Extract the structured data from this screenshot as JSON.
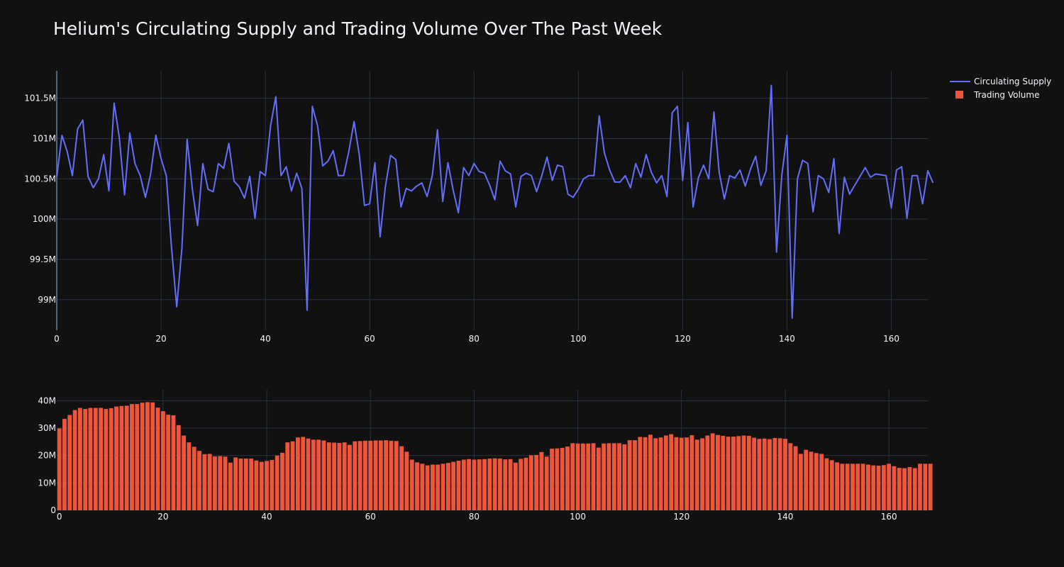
{
  "title": "Helium's Circulating Supply and Trading Volume Over The Past Week",
  "colors": {
    "background": "#111111",
    "grid": "#283442",
    "text": "#f2f5fa",
    "supply_line": "#636efa",
    "volume_bar": "#ef553b"
  },
  "legend": {
    "placement": "top-right",
    "items": [
      "Circulating Supply",
      "Trading Volume"
    ]
  },
  "chart_data": [
    {
      "type": "line",
      "series": [
        {
          "name": "Circulating Supply",
          "values": [
            100.52,
            101.04,
            100.84,
            100.54,
            101.12,
            101.23,
            100.53,
            100.39,
            100.5,
            100.8,
            100.35,
            101.44,
            101.01,
            100.3,
            101.07,
            100.69,
            100.54,
            100.27,
            100.56,
            101.04,
            100.75,
            100.54,
            99.65,
            98.91,
            99.64,
            100.99,
            100.37,
            99.92,
            100.69,
            100.37,
            100.34,
            100.69,
            100.63,
            100.94,
            100.47,
            100.4,
            100.26,
            100.53,
            100.01,
            100.59,
            100.54,
            101.16,
            101.52,
            100.54,
            100.65,
            100.35,
            100.57,
            100.38,
            98.87,
            101.4,
            101.16,
            100.66,
            100.72,
            100.85,
            100.54,
            100.54,
            100.84,
            101.21,
            100.8,
            100.17,
            100.19,
            100.7,
            99.78,
            100.4,
            100.79,
            100.74,
            100.15,
            100.38,
            100.35,
            100.41,
            100.45,
            100.28,
            100.54,
            101.11,
            100.22,
            100.7,
            100.36,
            100.08,
            100.64,
            100.54,
            100.69,
            100.59,
            100.57,
            100.42,
            100.24,
            100.72,
            100.6,
            100.56,
            100.15,
            100.53,
            100.57,
            100.54,
            100.34,
            100.54,
            100.77,
            100.48,
            100.67,
            100.65,
            100.31,
            100.27,
            100.37,
            100.5,
            100.54,
            100.54,
            101.28,
            100.82,
            100.61,
            100.46,
            100.46,
            100.54,
            100.39,
            100.69,
            100.52,
            100.8,
            100.58,
            100.45,
            100.54,
            100.28,
            101.32,
            101.4,
            100.48,
            101.2,
            100.15,
            100.51,
            100.67,
            100.5,
            101.33,
            100.58,
            100.25,
            100.54,
            100.51,
            100.61,
            100.41,
            100.62,
            100.78,
            100.42,
            100.6,
            101.66,
            99.59,
            100.54,
            101.04,
            98.77,
            100.5,
            100.73,
            100.69,
            100.09,
            100.54,
            100.5,
            100.33,
            100.75,
            99.82,
            100.52,
            100.31,
            100.42,
            100.53,
            100.64,
            100.52,
            100.56,
            100.55,
            100.54,
            100.14,
            100.61,
            100.65,
            100.01,
            100.54,
            100.54,
            100.19,
            100.6,
            100.45
          ]
        }
      ],
      "x_range": [
        0,
        167
      ],
      "y_range": [
        98.62,
        101.84
      ],
      "y_unit": "M",
      "x_ticks": [
        0,
        20,
        40,
        60,
        80,
        100,
        120,
        140,
        160
      ],
      "y_ticks": [
        99,
        99.5,
        100,
        100.5,
        101,
        101.5
      ],
      "y_tick_labels": [
        "99M",
        "99.5M",
        "100M",
        "100.5M",
        "101M",
        "101.5M"
      ],
      "grid": true
    },
    {
      "type": "bar",
      "series": [
        {
          "name": "Trading Volume",
          "values": [
            29.9,
            33.4,
            34.8,
            36.6,
            37.4,
            37.0,
            37.4,
            37.4,
            37.4,
            37.0,
            37.3,
            37.9,
            38.1,
            38.2,
            38.8,
            38.8,
            39.3,
            39.5,
            39.4,
            37.5,
            36.2,
            34.9,
            34.7,
            31.1,
            27.3,
            24.8,
            23.2,
            21.7,
            20.5,
            20.6,
            19.7,
            19.8,
            19.6,
            17.4,
            19.3,
            18.9,
            18.9,
            18.9,
            18.2,
            17.7,
            18.0,
            18.4,
            20.0,
            21.0,
            24.8,
            25.2,
            26.6,
            26.8,
            26.2,
            25.8,
            25.8,
            25.5,
            24.8,
            24.7,
            24.6,
            24.8,
            23.9,
            25.2,
            25.3,
            25.4,
            25.4,
            25.5,
            25.5,
            25.6,
            25.4,
            25.3,
            23.4,
            21.4,
            18.5,
            17.5,
            17.0,
            16.4,
            16.7,
            16.7,
            17.0,
            17.3,
            17.7,
            18.1,
            18.5,
            18.7,
            18.5,
            18.6,
            18.7,
            18.9,
            19.0,
            18.9,
            18.6,
            18.7,
            17.4,
            18.8,
            19.2,
            20.1,
            20.2,
            21.3,
            19.6,
            22.5,
            22.6,
            22.8,
            23.3,
            24.5,
            24.4,
            24.4,
            24.4,
            24.5,
            22.9,
            24.4,
            24.5,
            24.5,
            24.5,
            24.1,
            25.6,
            25.6,
            26.8,
            26.7,
            27.6,
            26.3,
            26.6,
            27.3,
            27.8,
            26.7,
            26.5,
            26.6,
            27.4,
            25.8,
            26.3,
            27.3,
            28.1,
            27.5,
            27.2,
            26.9,
            26.9,
            27.1,
            27.3,
            27.2,
            26.5,
            26.1,
            26.2,
            26.0,
            26.4,
            26.3,
            26.1,
            24.5,
            23.4,
            20.6,
            22.1,
            21.4,
            20.9,
            20.6,
            19.0,
            18.3,
            17.5,
            17.0,
            17.0,
            17.0,
            17.0,
            17.0,
            16.7,
            16.4,
            16.3,
            16.5,
            17.0,
            16.1,
            15.5,
            15.4,
            15.8,
            15.4,
            17.0,
            17.0,
            17.0
          ]
        }
      ],
      "x_range": [
        -0.5,
        167.5
      ],
      "y_range": [
        0,
        44
      ],
      "y_unit": "M",
      "x_ticks": [
        0,
        20,
        40,
        60,
        80,
        100,
        120,
        140,
        160
      ],
      "y_ticks": [
        0,
        10,
        20,
        30,
        40
      ],
      "y_tick_labels": [
        "0",
        "10M",
        "20M",
        "30M",
        "40M"
      ],
      "grid": true
    }
  ]
}
